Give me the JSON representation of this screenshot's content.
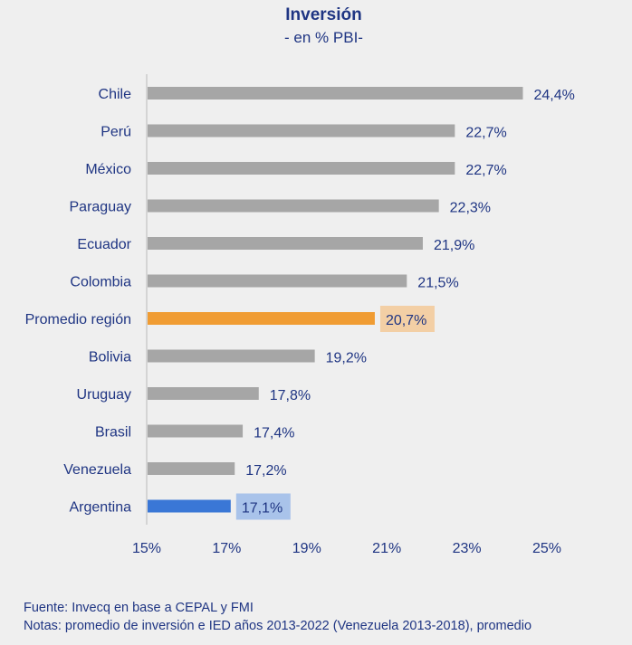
{
  "chart_data": {
    "type": "bar",
    "orientation": "horizontal",
    "title": "Inversión",
    "subtitle": "- en % PBI-",
    "categories": [
      "Chile",
      "Perú",
      "México",
      "Paraguay",
      "Ecuador",
      "Colombia",
      "Promedio región",
      "Bolivia",
      "Uruguay",
      "Brasil",
      "Venezuela",
      "Argentina"
    ],
    "values": [
      24.4,
      22.7,
      22.7,
      22.3,
      21.9,
      21.5,
      20.7,
      19.2,
      17.8,
      17.4,
      17.2,
      17.1
    ],
    "value_labels": [
      "24,4%",
      "22,7%",
      "22,7%",
      "22,3%",
      "21,9%",
      "21,5%",
      "20,7%",
      "19,2%",
      "17,8%",
      "17,4%",
      "17,2%",
      "17,1%"
    ],
    "xlim": [
      15,
      25
    ],
    "x_ticks": [
      15,
      17,
      19,
      21,
      23,
      25
    ],
    "x_tick_labels": [
      "15%",
      "17%",
      "19%",
      "21%",
      "23%",
      "25%"
    ],
    "grid": false,
    "colors": {
      "default": "#a6a6a6",
      "Promedio región": "#f09c33",
      "Argentina": "#3a77d6"
    },
    "label_highlight": {
      "Promedio región": "#f3cfa5",
      "Argentina": "#a9c3ea"
    },
    "text_color": "#1f3583"
  },
  "footer": {
    "source": "Fuente: Invecq en base a CEPAL y FMI",
    "notes": "Notas: promedio de inversión e IED años 2013-2022 (Venezuela 2013-2018), promedio"
  }
}
